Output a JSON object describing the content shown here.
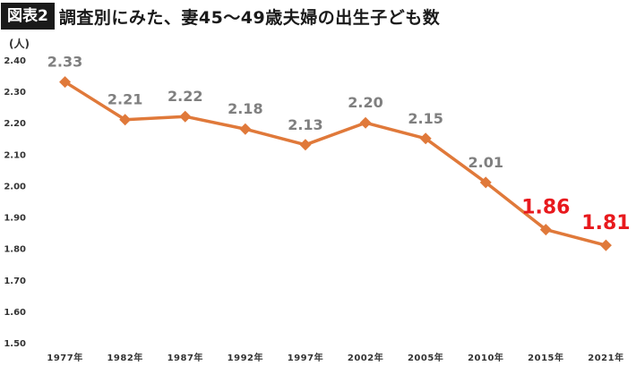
{
  "header": {
    "badge": "図表2",
    "title": "調査別にみた、妻45〜49歳夫婦の出生子ども数"
  },
  "chart_data": {
    "type": "line",
    "title": "調査別にみた、妻45〜49歳夫婦の出生子ども数",
    "unit_label": "(人)",
    "categories": [
      "1977年",
      "1982年",
      "1987年",
      "1992年",
      "1997年",
      "2002年",
      "2005年",
      "2010年",
      "2015年",
      "2021年"
    ],
    "series": [
      {
        "values": [
          2.33,
          2.21,
          2.22,
          2.18,
          2.13,
          2.2,
          2.15,
          2.01,
          1.86,
          1.81
        ],
        "data_labels": [
          "2.33",
          "2.21",
          "2.22",
          "2.18",
          "2.13",
          "2.20",
          "2.15",
          "2.01",
          "1.86",
          "1.81"
        ]
      }
    ],
    "ylim": [
      1.5,
      2.4
    ],
    "y_ticks": [
      "2.40",
      "2.30",
      "2.20",
      "2.10",
      "2.00",
      "1.90",
      "1.80",
      "1.70",
      "1.60",
      "1.50"
    ],
    "grid": false,
    "legend": "none",
    "colors": {
      "line": "#E0793A",
      "label": "#7f7f7f",
      "highlight_label": "#e8191d",
      "axis_text": "#595959"
    },
    "highlighted_points": [
      8,
      9
    ]
  }
}
